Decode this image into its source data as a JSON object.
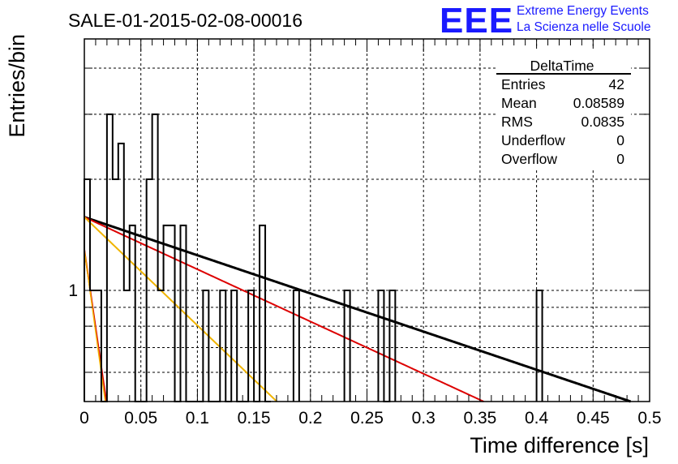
{
  "title": "SALE-01-2015-02-08-00016",
  "logo": {
    "mark": "EEE",
    "line1": "Extreme Energy Events",
    "line2": "La Scienza nelle Scuole",
    "color": "#1a1aff"
  },
  "stats_box": {
    "name": "DeltaTime",
    "rows": [
      {
        "label": "Entries",
        "value": "42"
      },
      {
        "label": "Mean",
        "value": "0.08589"
      },
      {
        "label": "RMS",
        "value": "0.0835"
      },
      {
        "label": "Underflow",
        "value": "0"
      },
      {
        "label": "Overflow",
        "value": "0"
      }
    ]
  },
  "chart_data": {
    "type": "histogram",
    "xlabel": "Time difference [s]",
    "ylabel": "Entries/bin",
    "xlim": [
      0,
      0.5
    ],
    "ylim": [
      0.5,
      4.8
    ],
    "log_y": true,
    "grid": true,
    "bin_width": 0.005,
    "x_ticks": [
      "0",
      "0.05",
      "0.1",
      "0.15",
      "0.2",
      "0.25",
      "0.3",
      "0.35",
      "0.4",
      "0.45",
      "0.5"
    ],
    "y_ticks": [
      "1"
    ],
    "histogram_color": "#000000",
    "bins": [
      {
        "x": 0.0,
        "y": 2
      },
      {
        "x": 0.005,
        "y": 1
      },
      {
        "x": 0.01,
        "y": 1
      },
      {
        "x": 0.015,
        "y": 0
      },
      {
        "x": 0.02,
        "y": 3
      },
      {
        "x": 0.025,
        "y": 2
      },
      {
        "x": 0.03,
        "y": 2.5
      },
      {
        "x": 0.035,
        "y": 1
      },
      {
        "x": 0.04,
        "y": 1.5
      },
      {
        "x": 0.045,
        "y": 0.5
      },
      {
        "x": 0.05,
        "y": 0.5
      },
      {
        "x": 0.055,
        "y": 2
      },
      {
        "x": 0.06,
        "y": 3
      },
      {
        "x": 0.065,
        "y": 1
      },
      {
        "x": 0.07,
        "y": 1.5
      },
      {
        "x": 0.075,
        "y": 1.5
      },
      {
        "x": 0.08,
        "y": 0.5
      },
      {
        "x": 0.085,
        "y": 1.5
      },
      {
        "x": 0.09,
        "y": 0.5
      },
      {
        "x": 0.095,
        "y": 0
      },
      {
        "x": 0.1,
        "y": 0
      },
      {
        "x": 0.105,
        "y": 1
      },
      {
        "x": 0.11,
        "y": 0.5
      },
      {
        "x": 0.115,
        "y": 0.5
      },
      {
        "x": 0.12,
        "y": 1
      },
      {
        "x": 0.125,
        "y": 0.5
      },
      {
        "x": 0.13,
        "y": 1
      },
      {
        "x": 0.135,
        "y": 0.5
      },
      {
        "x": 0.14,
        "y": 0.5
      },
      {
        "x": 0.145,
        "y": 1
      },
      {
        "x": 0.15,
        "y": 0.5
      },
      {
        "x": 0.155,
        "y": 1.5
      },
      {
        "x": 0.16,
        "y": 0
      },
      {
        "x": 0.185,
        "y": 1
      },
      {
        "x": 0.23,
        "y": 1
      },
      {
        "x": 0.26,
        "y": 1
      },
      {
        "x": 0.265,
        "y": 0.5
      },
      {
        "x": 0.27,
        "y": 1
      },
      {
        "x": 0.4,
        "y": 1
      }
    ],
    "fits": [
      {
        "color": "#000000",
        "width": 3,
        "y0": 1.58,
        "tau": 0.42
      },
      {
        "color": "#dd0000",
        "width": 2,
        "y0": 1.58,
        "tau": 0.307
      },
      {
        "color": "#f0b400",
        "width": 2,
        "y0": 1.58,
        "tau": 0.148
      },
      {
        "color": "#dd0000",
        "width": 2,
        "y0": 1.29,
        "tau": 0.0205
      },
      {
        "color": "#f0b400",
        "width": 1.5,
        "y0": 1.29,
        "tau": 0.0195
      }
    ]
  }
}
